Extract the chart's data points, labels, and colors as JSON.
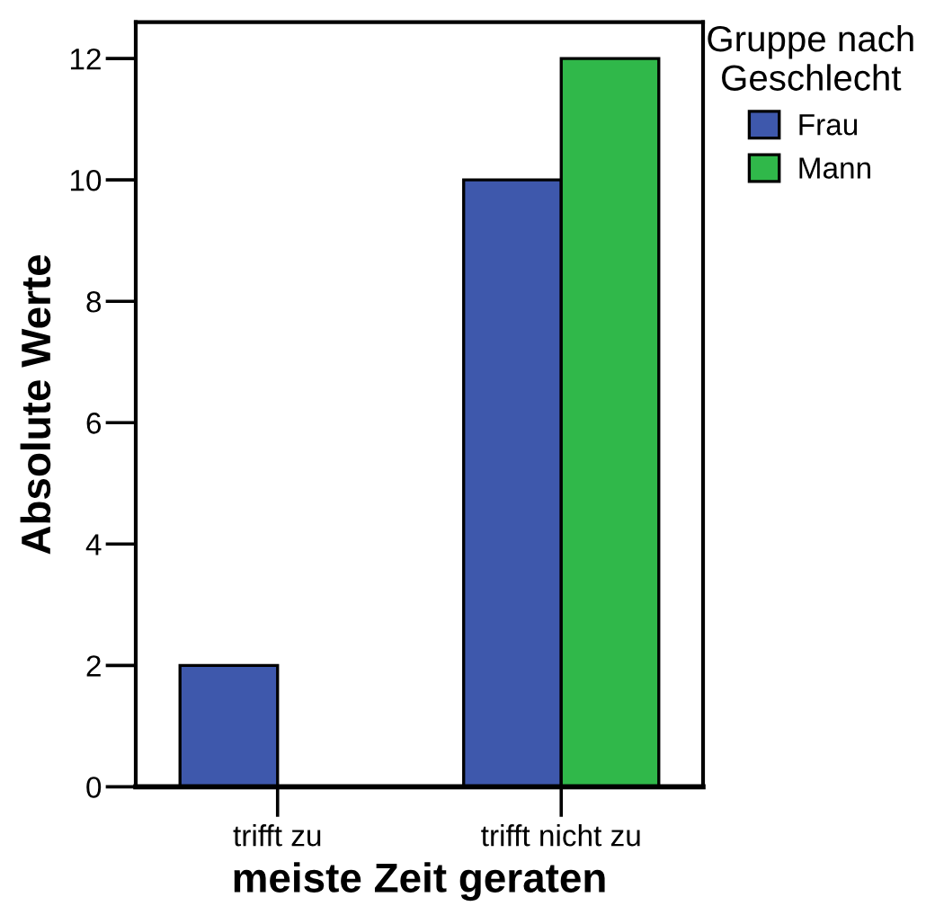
{
  "chart_data": {
    "type": "bar",
    "xlabel": "meiste Zeit geraten",
    "ylabel": "Absolute Werte",
    "legend_title": "Gruppe nach\nGeschlecht",
    "categories": [
      "trifft zu",
      "trifft nicht zu"
    ],
    "series": [
      {
        "name": "Frau",
        "color": "#3e58ac",
        "values": [
          2,
          10
        ]
      },
      {
        "name": "Mann",
        "color": "#30b84a",
        "values": [
          null,
          12
        ]
      }
    ],
    "ylim": [
      0,
      12.6
    ],
    "yticks": [
      0,
      2,
      4,
      6,
      8,
      10,
      12
    ],
    "legend": "top right"
  }
}
